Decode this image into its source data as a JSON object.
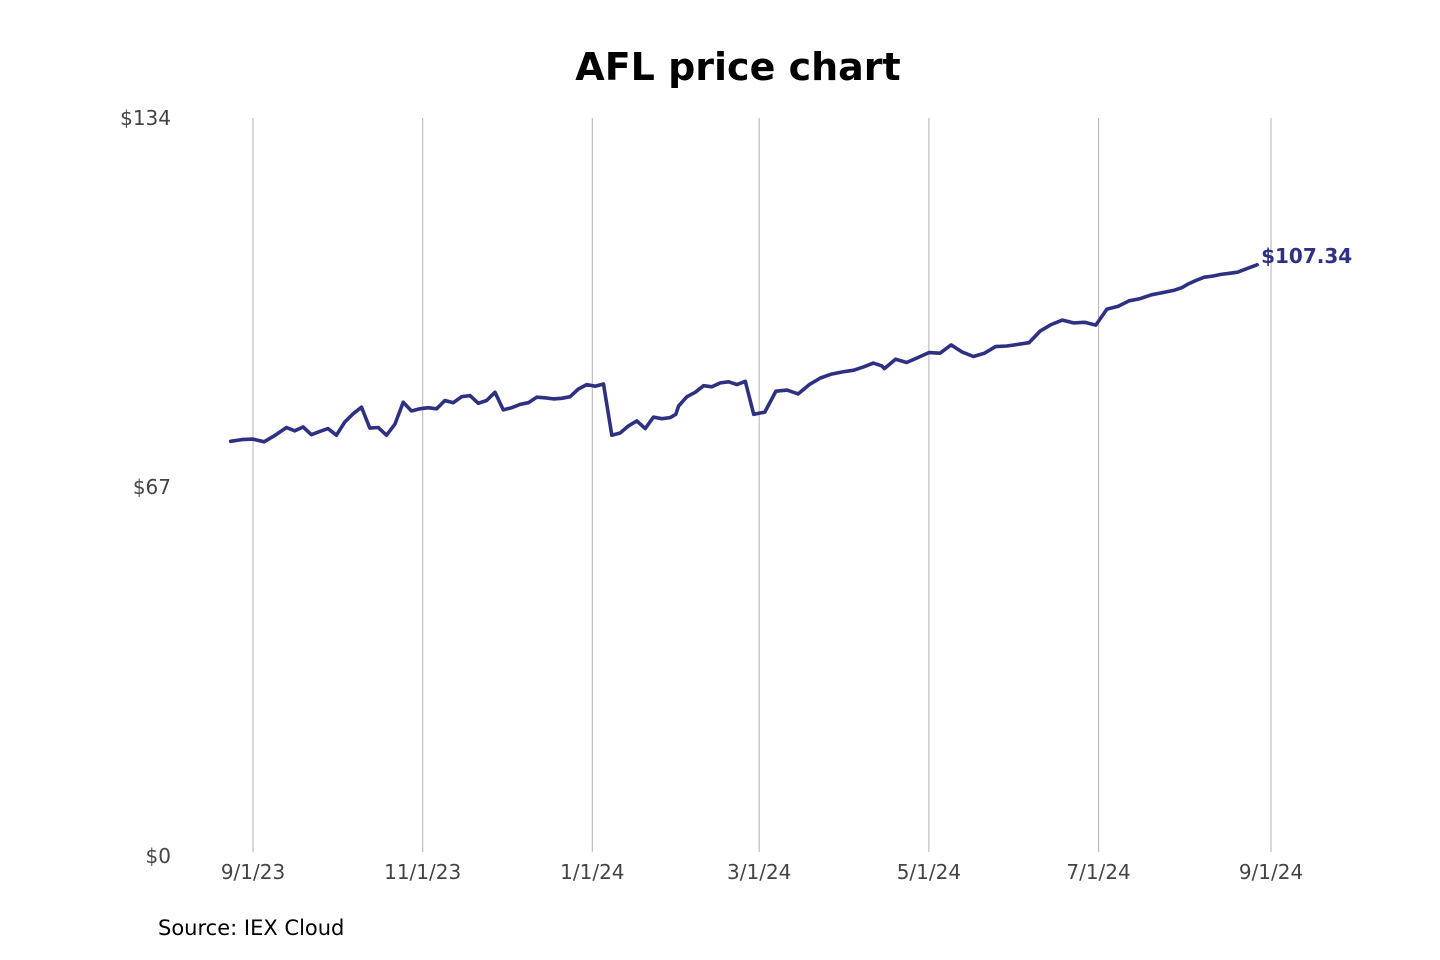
{
  "chart_data": {
    "type": "line",
    "title": "AFL price chart",
    "xlabel": "",
    "ylabel": "",
    "y_ticks": [
      {
        "value": 0,
        "label": "$0"
      },
      {
        "value": 67,
        "label": "$67"
      },
      {
        "value": 134,
        "label": "$134"
      }
    ],
    "ylim": [
      0,
      134
    ],
    "xlim": [
      "2023-08-24",
      "2024-09-01"
    ],
    "x_ticks": [
      {
        "date": "2023-09-01",
        "label": "9/1/23"
      },
      {
        "date": "2023-11-01",
        "label": "11/1/23"
      },
      {
        "date": "2024-01-01",
        "label": "1/1/24"
      },
      {
        "date": "2024-03-01",
        "label": "3/1/24"
      },
      {
        "date": "2024-05-01",
        "label": "5/1/24"
      },
      {
        "date": "2024-07-01",
        "label": "7/1/24"
      },
      {
        "date": "2024-09-01",
        "label": "9/1/24"
      }
    ],
    "grid": "vertical",
    "legend": "none",
    "line_color": "#2e3182",
    "last_value_label": "$107.34",
    "series": [
      {
        "x": [
          "2023-08-24",
          "2023-08-28",
          "2023-09-01",
          "2023-09-05",
          "2023-09-09",
          "2023-09-13",
          "2023-09-16",
          "2023-09-19",
          "2023-09-22",
          "2023-09-25",
          "2023-09-28",
          "2023-10-01",
          "2023-10-04",
          "2023-10-07",
          "2023-10-10",
          "2023-10-13",
          "2023-10-16",
          "2023-10-19",
          "2023-10-22",
          "2023-10-25",
          "2023-10-28",
          "2023-10-31",
          "2023-11-03",
          "2023-11-06",
          "2023-11-09",
          "2023-11-12",
          "2023-11-15",
          "2023-11-18",
          "2023-11-21",
          "2023-11-24",
          "2023-11-27",
          "2023-11-30",
          "2023-12-03",
          "2023-12-06",
          "2023-12-09",
          "2023-12-12",
          "2023-12-15",
          "2023-12-18",
          "2023-12-21",
          "2023-12-24",
          "2023-12-27",
          "2023-12-30",
          "2024-01-02",
          "2024-01-05",
          "2024-01-08",
          "2024-01-11",
          "2024-01-14",
          "2024-01-17",
          "2024-01-20",
          "2024-01-23",
          "2024-01-26",
          "2024-01-29",
          "2024-01-31",
          "2024-02-01",
          "2024-02-04",
          "2024-02-07",
          "2024-02-10",
          "2024-02-13",
          "2024-02-16",
          "2024-02-19",
          "2024-02-22",
          "2024-02-25",
          "2024-02-28",
          "2024-03-03",
          "2024-03-07",
          "2024-03-11",
          "2024-03-15",
          "2024-03-19",
          "2024-03-23",
          "2024-03-27",
          "2024-03-31",
          "2024-04-04",
          "2024-04-08",
          "2024-04-11",
          "2024-04-14",
          "2024-04-15",
          "2024-04-19",
          "2024-04-23",
          "2024-04-27",
          "2024-05-01",
          "2024-05-05",
          "2024-05-09",
          "2024-05-13",
          "2024-05-17",
          "2024-05-21",
          "2024-05-25",
          "2024-05-29",
          "2024-06-02",
          "2024-06-06",
          "2024-06-10",
          "2024-06-14",
          "2024-06-18",
          "2024-06-22",
          "2024-06-26",
          "2024-06-30",
          "2024-07-04",
          "2024-07-08",
          "2024-07-12",
          "2024-07-16",
          "2024-07-20",
          "2024-07-24",
          "2024-07-28",
          "2024-07-31",
          "2024-08-02",
          "2024-08-05",
          "2024-08-08",
          "2024-08-11",
          "2024-08-14",
          "2024-08-17",
          "2024-08-20",
          "2024-08-23",
          "2024-08-27"
        ],
        "values": [
          75.3,
          75.6,
          75.7,
          75.2,
          76.4,
          77.8,
          77.2,
          77.9,
          76.5,
          77.1,
          77.6,
          76.4,
          78.8,
          80.3,
          81.5,
          77.7,
          77.8,
          76.4,
          78.4,
          82.4,
          80.8,
          81.2,
          81.4,
          81.2,
          82.7,
          82.3,
          83.4,
          83.6,
          82.2,
          82.7,
          84.2,
          81.0,
          81.4,
          82.0,
          82.3,
          83.3,
          83.2,
          83.0,
          83.1,
          83.4,
          84.8,
          85.6,
          85.3,
          85.7,
          76.4,
          76.8,
          78.1,
          79.0,
          77.6,
          79.7,
          79.4,
          79.6,
          80.2,
          81.7,
          83.4,
          84.2,
          85.4,
          85.2,
          85.9,
          86.1,
          85.6,
          86.2,
          80.2,
          80.6,
          84.4,
          84.6,
          83.9,
          85.6,
          86.8,
          87.5,
          87.9,
          88.2,
          88.9,
          89.5,
          89.0,
          88.5,
          90.2,
          89.6,
          90.5,
          91.4,
          91.3,
          92.8,
          91.5,
          90.7,
          91.3,
          92.5,
          92.6,
          92.9,
          93.2,
          95.3,
          96.5,
          97.3,
          96.8,
          96.9,
          96.4,
          99.3,
          99.8,
          100.8,
          101.2,
          101.9,
          102.3,
          102.7,
          103.2,
          103.8,
          104.5,
          105.1,
          105.3,
          105.6,
          105.8,
          106.0,
          106.6,
          107.34
        ]
      }
    ]
  },
  "source": "Source: IEX Cloud"
}
